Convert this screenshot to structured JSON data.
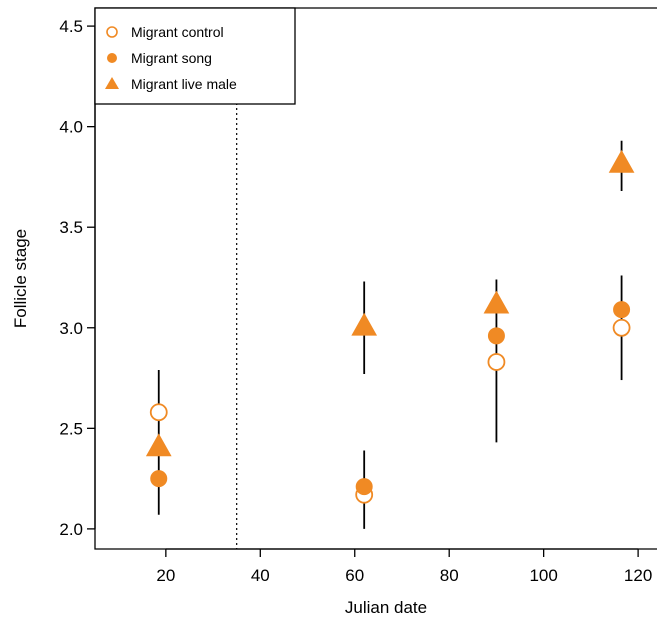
{
  "chart_data": {
    "type": "scatter",
    "xlabel": "Julian date",
    "ylabel": "Follicle stage",
    "xlim": [
      5,
      124
    ],
    "ylim": [
      1.9,
      4.59
    ],
    "x_ticks": [
      20,
      40,
      60,
      80,
      100,
      120
    ],
    "x_tick_labels": [
      "20",
      "40",
      "60",
      "80",
      "100",
      "120"
    ],
    "y_ticks": [
      2.0,
      2.5,
      3.0,
      3.5,
      4.0,
      4.5
    ],
    "y_tick_labels": [
      "2.0",
      "2.5",
      "3.0",
      "3.5",
      "4.0",
      "4.5"
    ],
    "grid": false,
    "legend_position": "top-left",
    "reference_line": {
      "x": 35,
      "style": "dotted"
    },
    "series": [
      {
        "name": "Migrant control",
        "marker": "open-circle",
        "color": "#F08A24",
        "points": [
          {
            "x": 18.5,
            "y": 2.58
          },
          {
            "x": 62,
            "y": 2.17
          },
          {
            "x": 90,
            "y": 2.83
          },
          {
            "x": 116.5,
            "y": 3.0
          }
        ]
      },
      {
        "name": "Migrant song",
        "marker": "filled-circle",
        "color": "#F08A24",
        "points": [
          {
            "x": 18.5,
            "y": 2.25
          },
          {
            "x": 62,
            "y": 2.21
          },
          {
            "x": 90,
            "y": 2.96
          },
          {
            "x": 116.5,
            "y": 3.09
          }
        ]
      },
      {
        "name": "Migrant live male",
        "marker": "filled-triangle",
        "color": "#F08A24",
        "points": [
          {
            "x": 18.5,
            "y": 2.41
          },
          {
            "x": 62,
            "y": 3.01
          },
          {
            "x": 90,
            "y": 3.12
          },
          {
            "x": 116.5,
            "y": 3.82
          }
        ]
      }
    ],
    "error_bars": [
      {
        "x": 18.5,
        "low": 2.07,
        "high": 2.79
      },
      {
        "x": 62,
        "low": 2.0,
        "high": 2.39
      },
      {
        "x": 62,
        "low": 2.77,
        "high": 3.23
      },
      {
        "x": 90,
        "low": 2.43,
        "high": 3.24
      },
      {
        "x": 116.5,
        "low": 2.74,
        "high": 3.26
      },
      {
        "x": 116.5,
        "low": 3.68,
        "high": 3.93
      }
    ]
  }
}
